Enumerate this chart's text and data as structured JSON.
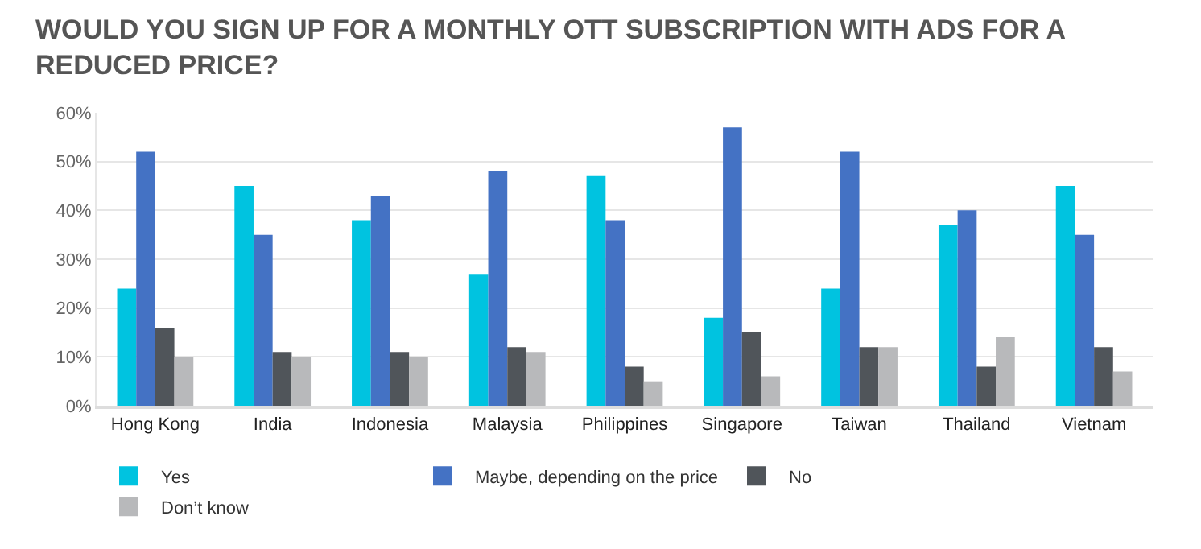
{
  "chart_data": {
    "type": "bar",
    "title": "WOULD YOU SIGN UP FOR A MONTHLY OTT SUBSCRIPTION WITH ADS FOR A REDUCED PRICE?",
    "categories": [
      "Hong Kong",
      "India",
      "Indonesia",
      "Malaysia",
      "Philippines",
      "Singapore",
      "Taiwan",
      "Thailand",
      "Vietnam"
    ],
    "series": [
      {
        "name": "Yes",
        "color": "#00c3e0",
        "values": [
          24,
          45,
          38,
          27,
          47,
          18,
          24,
          37,
          45
        ]
      },
      {
        "name": "Maybe, depending on the price",
        "color": "#4472c4",
        "values": [
          52,
          35,
          43,
          48,
          38,
          57,
          52,
          40,
          35
        ]
      },
      {
        "name": "No",
        "color": "#50555a",
        "values": [
          16,
          11,
          11,
          12,
          8,
          15,
          12,
          8,
          12
        ]
      },
      {
        "name": "Don’t know",
        "color": "#b8b9bb",
        "values": [
          10,
          10,
          10,
          11,
          5,
          6,
          12,
          14,
          7
        ]
      }
    ],
    "ylim": [
      0,
      60
    ],
    "yticks": [
      {
        "value": 0,
        "label": "0%"
      },
      {
        "value": 10,
        "label": "10%"
      },
      {
        "value": 20,
        "label": "20%"
      },
      {
        "value": 30,
        "label": "30%"
      },
      {
        "value": 40,
        "label": "40%"
      },
      {
        "value": 50,
        "label": "50%"
      },
      {
        "value": 60,
        "label": "60%"
      }
    ],
    "grid": "y",
    "legend": "bottom"
  }
}
